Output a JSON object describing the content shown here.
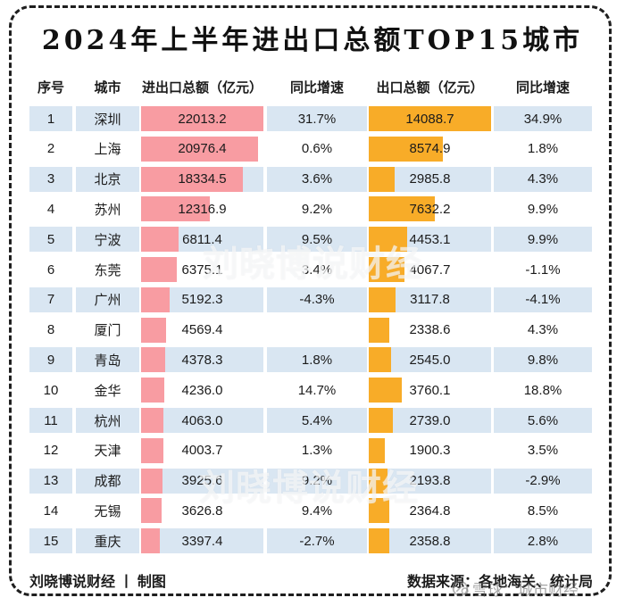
{
  "title": "2024年上半年进出口总额TOP15城市",
  "table": {
    "headers": [
      "序号",
      "城市",
      "进出口总额（亿元）",
      "同比增速",
      "出口总额（亿元）",
      "同比增速"
    ],
    "max_total": 22013.2,
    "max_export": 14088.7,
    "rows": [
      {
        "rank": "1",
        "city": "深圳",
        "total": 22013.2,
        "total_growth": "31.7%",
        "export": 14088.7,
        "export_growth": "34.9%"
      },
      {
        "rank": "2",
        "city": "上海",
        "total": 20976.4,
        "total_growth": "0.6%",
        "export": 8574.9,
        "export_growth": "1.8%"
      },
      {
        "rank": "3",
        "city": "北京",
        "total": 18334.5,
        "total_growth": "3.6%",
        "export": 2985.8,
        "export_growth": "4.3%"
      },
      {
        "rank": "4",
        "city": "苏州",
        "total": 12316.9,
        "total_growth": "9.2%",
        "export": 7632.2,
        "export_growth": "9.9%"
      },
      {
        "rank": "5",
        "city": "宁波",
        "total": 6811.4,
        "total_growth": "9.5%",
        "export": 4453.1,
        "export_growth": "9.9%"
      },
      {
        "rank": "6",
        "city": "东莞",
        "total": 6375.1,
        "total_growth": "3.4%",
        "export": 4067.7,
        "export_growth": "-1.1%"
      },
      {
        "rank": "7",
        "city": "广州",
        "total": 5192.3,
        "total_growth": "-4.3%",
        "export": 3117.8,
        "export_growth": "-4.1%"
      },
      {
        "rank": "8",
        "city": "厦门",
        "total": 4569.4,
        "total_growth": "",
        "export": 2338.6,
        "export_growth": "4.3%"
      },
      {
        "rank": "9",
        "city": "青岛",
        "total": 4378.3,
        "total_growth": "1.8%",
        "export": 2545.0,
        "export_growth": "9.8%"
      },
      {
        "rank": "10",
        "city": "金华",
        "total": 4236.0,
        "total_growth": "14.7%",
        "export": 3760.1,
        "export_growth": "18.8%"
      },
      {
        "rank": "11",
        "city": "杭州",
        "total": 4063.0,
        "total_growth": "5.4%",
        "export": 2739.0,
        "export_growth": "5.6%"
      },
      {
        "rank": "12",
        "city": "天津",
        "total": 4003.7,
        "total_growth": "1.3%",
        "export": 1900.3,
        "export_growth": "3.5%"
      },
      {
        "rank": "13",
        "city": "成都",
        "total": 3925.6,
        "total_growth": "9.2%",
        "export": 2193.8,
        "export_growth": "-2.9%"
      },
      {
        "rank": "14",
        "city": "无锡",
        "total": 3626.8,
        "total_growth": "9.4%",
        "export": 2364.8,
        "export_growth": "8.5%"
      },
      {
        "rank": "15",
        "city": "重庆",
        "total": 3397.4,
        "total_growth": "-2.7%",
        "export": 2358.8,
        "export_growth": "2.8%"
      }
    ]
  },
  "chart_data": {
    "type": "bar",
    "title": "2024年上半年进出口总额TOP15城市",
    "categories": [
      "深圳",
      "上海",
      "北京",
      "苏州",
      "宁波",
      "东莞",
      "广州",
      "厦门",
      "青岛",
      "金华",
      "杭州",
      "天津",
      "成都",
      "无锡",
      "重庆"
    ],
    "series": [
      {
        "name": "进出口总额（亿元）",
        "color_key": "pink",
        "values": [
          22013.2,
          20976.4,
          18334.5,
          12316.9,
          6811.4,
          6375.1,
          5192.3,
          4569.4,
          4378.3,
          4236.0,
          4063.0,
          4003.7,
          3925.6,
          3626.8,
          3397.4
        ]
      },
      {
        "name": "进出口同比增速",
        "color_key": "none",
        "values": [
          "31.7%",
          "0.6%",
          "3.6%",
          "9.2%",
          "9.5%",
          "3.4%",
          "-4.3%",
          "",
          "1.8%",
          "14.7%",
          "5.4%",
          "1.3%",
          "9.2%",
          "9.4%",
          "-2.7%"
        ]
      },
      {
        "name": "出口总额（亿元）",
        "color_key": "orange",
        "values": [
          14088.7,
          8574.9,
          2985.8,
          7632.2,
          4453.1,
          4067.7,
          3117.8,
          2338.6,
          2545.0,
          3760.1,
          2739.0,
          1900.3,
          2193.8,
          2364.8,
          2358.8
        ]
      },
      {
        "name": "出口同比增速",
        "color_key": "none",
        "values": [
          "34.9%",
          "1.8%",
          "4.3%",
          "9.9%",
          "9.9%",
          "-1.1%",
          "-4.1%",
          "4.3%",
          "9.8%",
          "18.8%",
          "5.6%",
          "3.5%",
          "-2.9%",
          "8.5%",
          "2.8%"
        ]
      }
    ],
    "bar_axis": {
      "total_max": 22013.2,
      "export_max": 14088.7
    },
    "layout": "table-with-inline-bars",
    "legend": "none",
    "grid": "off"
  },
  "footer": {
    "left": "刘晓博说财经 丨 制图",
    "right": "数据来源：各地海关、统计局"
  },
  "watermarks": {
    "center": "刘晓博说财经",
    "corner": "雪球：城市财经"
  },
  "colors": {
    "pink": "#F89CA2",
    "orange": "#F8AC28",
    "row_alt": "#D9E6F2",
    "border": "#1F1F1F"
  }
}
